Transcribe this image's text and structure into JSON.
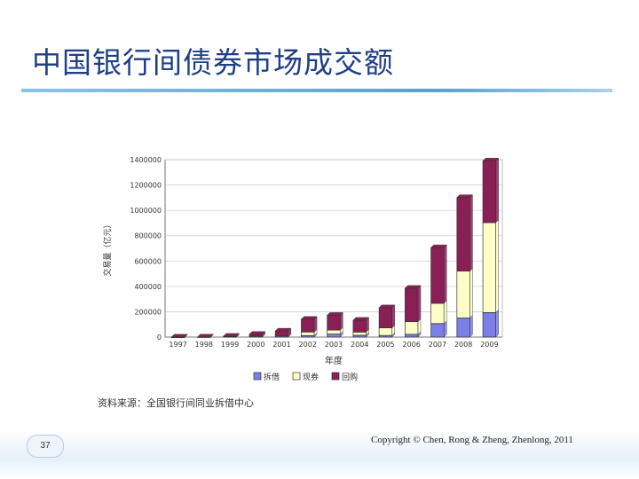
{
  "slide": {
    "title": "中国银行间债券市场成交额",
    "source_note": "资料来源：全国银行间同业拆借中心",
    "page_number": "37",
    "copyright": "Copyright © Chen, Rong & Zheng, Zhenlong, 2011"
  },
  "chart_data": {
    "type": "bar",
    "stacked": true,
    "categories": [
      "1997",
      "1998",
      "1999",
      "2000",
      "2001",
      "2002",
      "2003",
      "2004",
      "2005",
      "2006",
      "2007",
      "2008",
      "2009"
    ],
    "series": [
      {
        "name": "拆借",
        "color": "#7b7fe8",
        "values": [
          300,
          0,
          3300,
          6700,
          8100,
          12100,
          24000,
          14500,
          12800,
          21500,
          106500,
          150500,
          193500
        ]
      },
      {
        "name": "现券",
        "color": "#fdfdc8",
        "values": [
          0,
          0,
          0,
          0,
          0,
          28000,
          31000,
          25000,
          60000,
          100000,
          160000,
          370000,
          710000
        ]
      },
      {
        "name": "回购",
        "color": "#8a1f55",
        "values": [
          300,
          1000,
          4000,
          15700,
          40100,
          101000,
          117000,
          94000,
          159000,
          264000,
          440000,
          581000,
          487000
        ]
      }
    ],
    "xlabel": "年度",
    "ylabel": "交易量（亿元）",
    "ylim": [
      0,
      1400000
    ],
    "yticks": [
      0,
      200000,
      400000,
      600000,
      800000,
      1000000,
      1200000,
      1400000
    ],
    "grid": true,
    "legend": "bottom"
  }
}
